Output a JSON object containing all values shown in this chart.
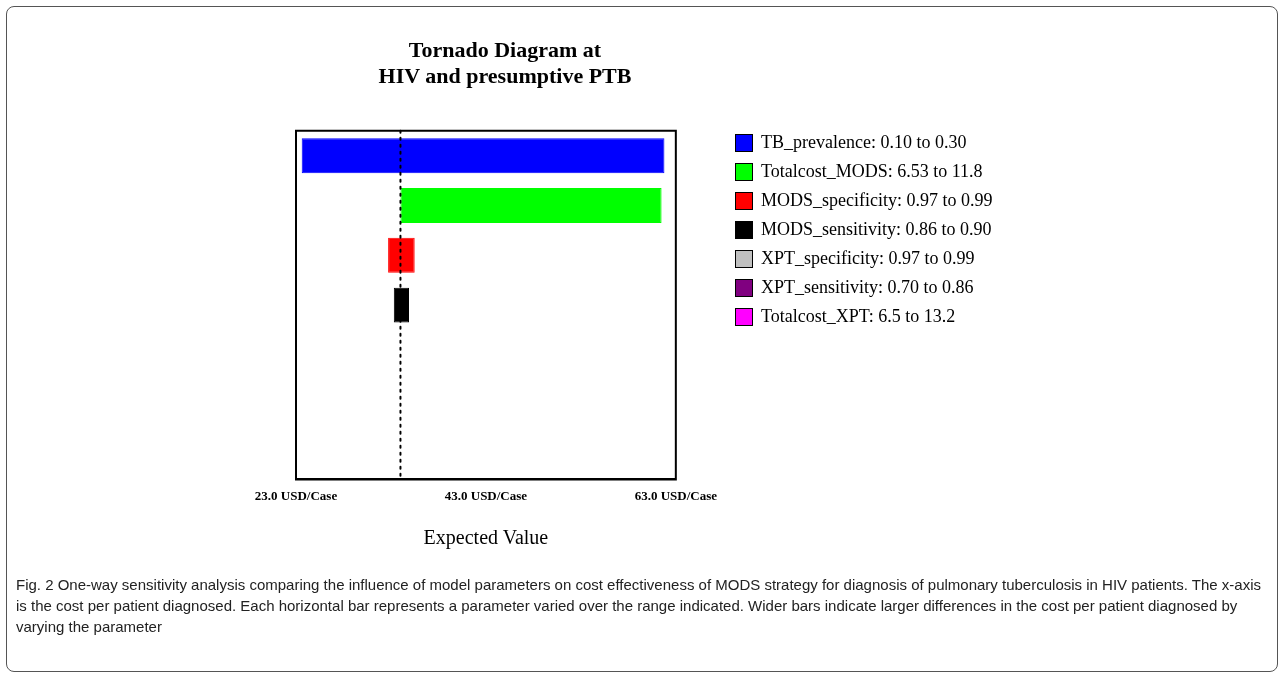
{
  "chart_data": {
    "type": "bar",
    "orientation": "horizontal",
    "title": "Tornado Diagram at\nHIV and presumptive PTB",
    "xlabel": "Expected Value",
    "categories": [
      null,
      null,
      null,
      null,
      null,
      null,
      null
    ],
    "series": [
      {
        "name": "TB_prevalence: 0.10 to 0.30",
        "color": "#0000ff",
        "base": [
          23.6,
          null,
          null,
          null,
          null,
          null,
          null
        ],
        "values": [
          38.2,
          null,
          null,
          null,
          null,
          null,
          null
        ]
      },
      {
        "name": "Totalcost_MODS: 6.53 to 11.8",
        "color": "#00ff00",
        "base": [
          null,
          34.0,
          null,
          null,
          null,
          null,
          null
        ],
        "values": [
          null,
          27.5,
          null,
          null,
          null,
          null,
          null
        ]
      },
      {
        "name": "MODS_specificity: 0.97 to 0.99",
        "color": "#ff0000",
        "base": [
          null,
          null,
          32.7,
          null,
          null,
          null,
          null
        ],
        "values": [
          null,
          null,
          2.8,
          null,
          null,
          null,
          null
        ]
      },
      {
        "name": "MODS_sensitivity: 0.86 to 0.90",
        "color": "#000000",
        "base": [
          null,
          null,
          null,
          33.3,
          null,
          null,
          null
        ],
        "values": [
          null,
          null,
          null,
          1.6,
          null,
          null,
          null
        ]
      },
      {
        "name": "XPT_specificity: 0.97 to 0.99",
        "color": "#c0c0c0",
        "base": [
          null,
          null,
          null,
          null,
          null,
          null,
          null
        ],
        "values": [
          null,
          null,
          null,
          null,
          null,
          null,
          null
        ]
      },
      {
        "name": "XPT_sensitivity: 0.70 to 0.86",
        "color": "#800080",
        "base": [
          null,
          null,
          null,
          null,
          null,
          null,
          null
        ],
        "values": [
          null,
          null,
          null,
          null,
          null,
          null,
          null
        ]
      },
      {
        "name": "Totalcost_XPT: 6.5 to 13.2",
        "color": "#ff00ff",
        "base": [
          null,
          null,
          null,
          null,
          null,
          null,
          null
        ],
        "values": [
          null,
          null,
          null,
          null,
          null,
          null,
          null
        ]
      }
    ],
    "xlim": [
      23,
      63
    ],
    "xticks": [
      {
        "value": 23,
        "label": "23.0 USD/Case"
      },
      {
        "value": 43,
        "label": "43.0 USD/Case"
      },
      {
        "value": 63,
        "label": "63.0 USD/Case"
      }
    ],
    "ref_lines": [
      {
        "axis": "x",
        "value": 34.0,
        "label": null,
        "line_style": "dotted",
        "color": "#000000"
      }
    ],
    "grid": false,
    "legend": "right",
    "annotations": [
      "Fig. 2 One-way sensitivity analysis comparing the influence of model parameters on cost effectiveness of MODS strategy for diagnosis of pulmonary tuberculosis in HIV patients. The x-axis is the cost per patient diagnosed. Each horizontal bar represents a parameter varied over the range indicated. Wider bars indicate larger differences in the cost per patient diagnosed by varying the parameter"
    ]
  }
}
